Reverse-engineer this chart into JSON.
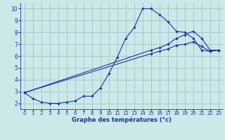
{
  "xlabel": "Graphe des températures (°c)",
  "bg_color": "#cce8e8",
  "grid_color": "#a8c8cc",
  "line_color": "#1a35a0",
  "xlim": [
    -0.5,
    23.5
  ],
  "ylim": [
    1.5,
    10.5
  ],
  "xticks": [
    0,
    1,
    2,
    3,
    4,
    5,
    6,
    7,
    8,
    9,
    10,
    11,
    12,
    13,
    14,
    15,
    16,
    17,
    18,
    19,
    20,
    21,
    22,
    23
  ],
  "yticks": [
    2,
    3,
    4,
    5,
    6,
    7,
    8,
    9,
    10
  ],
  "series": [
    {
      "x": [
        0,
        1,
        2,
        3,
        4,
        5,
        6,
        7,
        8,
        9,
        10,
        11,
        12,
        13,
        14,
        15,
        16,
        17,
        18,
        19,
        20,
        21,
        22,
        23
      ],
      "y": [
        2.9,
        2.4,
        2.1,
        2.0,
        2.0,
        2.1,
        2.2,
        2.6,
        2.6,
        3.3,
        4.5,
        5.9,
        7.5,
        8.4,
        10.0,
        10.0,
        9.5,
        8.9,
        8.1,
        8.0,
        7.5,
        6.5,
        6.4,
        6.5
      ]
    },
    {
      "x": [
        0,
        15,
        16,
        17,
        18,
        19,
        20,
        21,
        22,
        23
      ],
      "y": [
        2.9,
        6.5,
        6.7,
        7.0,
        7.5,
        7.8,
        8.1,
        7.5,
        6.5,
        6.5
      ]
    },
    {
      "x": [
        0,
        15,
        16,
        17,
        18,
        19,
        20,
        21,
        22,
        23
      ],
      "y": [
        2.9,
        6.2,
        6.4,
        6.6,
        6.9,
        7.0,
        7.2,
        6.8,
        6.4,
        6.5
      ]
    }
  ]
}
